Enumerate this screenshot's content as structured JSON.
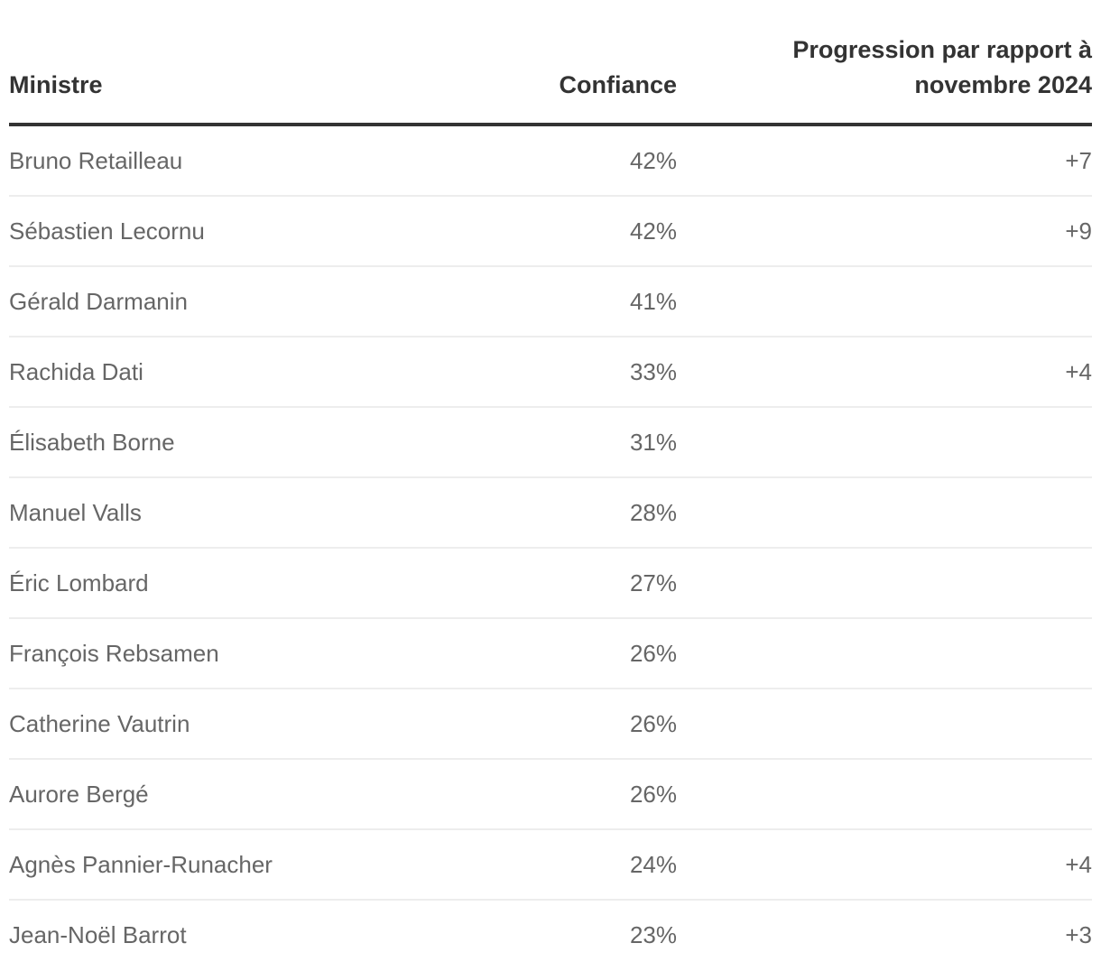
{
  "chart_data": {
    "type": "table",
    "columns": [
      {
        "label": "Ministre",
        "align": "left"
      },
      {
        "label": "Confiance",
        "align": "right"
      },
      {
        "label": "Progression par rapport à novembre 2024",
        "align": "right"
      }
    ],
    "rows": [
      [
        "Bruno Retailleau",
        "42%",
        "+7"
      ],
      [
        "Sébastien Lecornu",
        "42%",
        "+9"
      ],
      [
        "Gérald Darmanin",
        "41%",
        ""
      ],
      [
        "Rachida Dati",
        "33%",
        "+4"
      ],
      [
        "Élisabeth Borne",
        "31%",
        ""
      ],
      [
        "Manuel Valls",
        "28%",
        ""
      ],
      [
        "Éric Lombard",
        "27%",
        ""
      ],
      [
        "François Rebsamen",
        "26%",
        ""
      ],
      [
        "Catherine Vautrin",
        "26%",
        ""
      ],
      [
        "Aurore Bergé",
        "26%",
        ""
      ],
      [
        "Agnès Pannier-Runacher",
        "24%",
        "+4"
      ],
      [
        "Jean-Noël Barrot",
        "23%",
        "+3"
      ]
    ]
  },
  "colors": {
    "header_text": "#333333",
    "header_rule": "#333333",
    "body_text": "#666666",
    "row_divider": "#ededed",
    "background": "#ffffff"
  }
}
